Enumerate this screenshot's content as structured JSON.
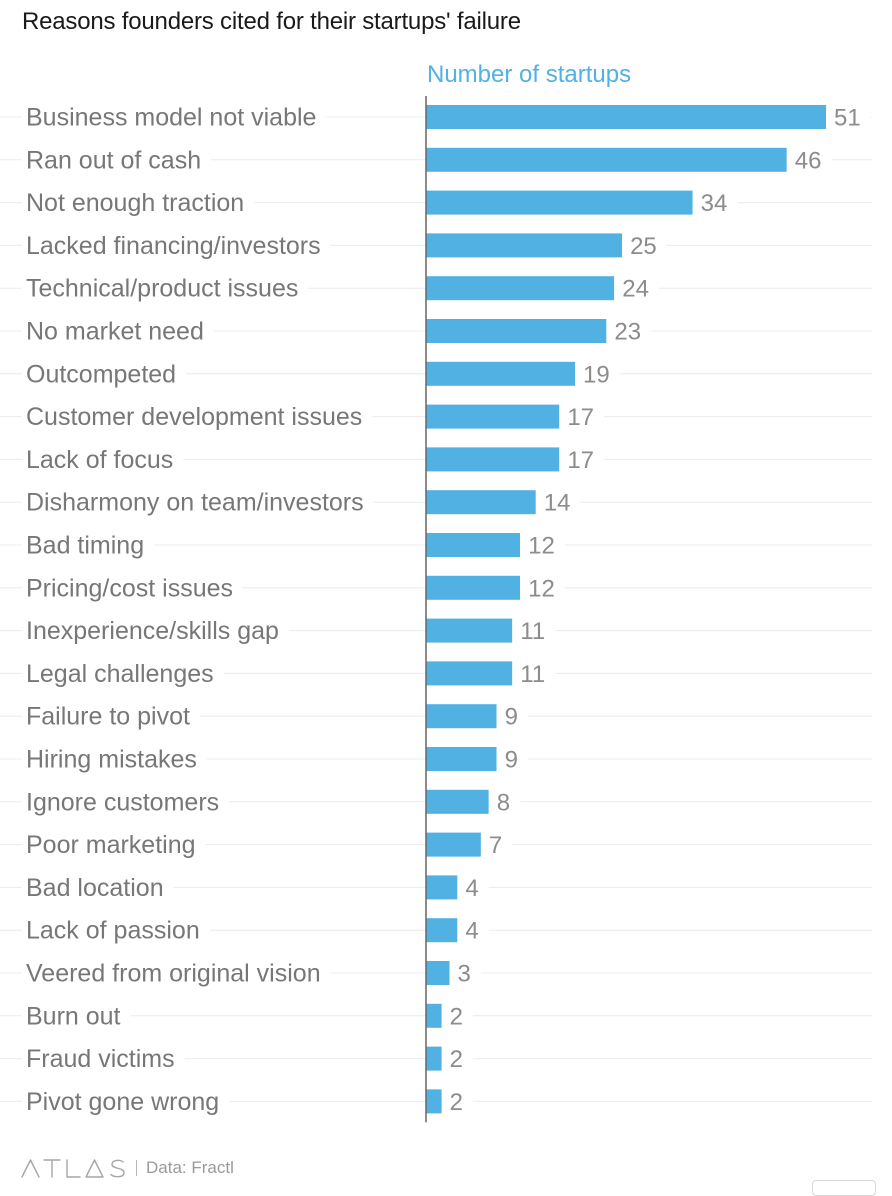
{
  "chart_data": {
    "type": "bar",
    "orientation": "horizontal",
    "title": "Reasons founders cited for their startups' failure",
    "series": [
      {
        "name": "Number of startups",
        "color": "#52b1e3",
        "values": [
          51,
          46,
          34,
          25,
          24,
          23,
          19,
          17,
          17,
          14,
          12,
          12,
          11,
          11,
          9,
          9,
          8,
          7,
          4,
          4,
          3,
          2,
          2,
          2
        ]
      }
    ],
    "categories": [
      "Business model not viable",
      "Ran out of cash",
      "Not enough traction",
      "Lacked financing/investors",
      "Technical/product issues",
      "No market need",
      "Outcompeted",
      "Customer development issues",
      "Lack of focus",
      "Disharmony on team/investors",
      "Bad timing",
      "Pricing/cost issues",
      "Inexperience/skills gap",
      "Legal challenges",
      "Failure to pivot",
      "Hiring mistakes",
      "Ignore customers",
      "Poor marketing",
      "Bad location",
      "Lack of passion",
      "Veered from original vision",
      "Burn out",
      "Fraud victims",
      "Pivot gone wrong"
    ],
    "xlim": [
      0,
      51
    ],
    "value_labels": true,
    "grid": "row guide lines",
    "legend": "top, above bars"
  },
  "colors": {
    "bar": "#52b1e3",
    "series_label": "#52b1e3",
    "category_text": "#777777",
    "value_text": "#8c8c8c",
    "axis": "#666666",
    "guide": "#ececec",
    "title": "#1a1a1a"
  },
  "footer": {
    "brand_icon": "atlas-logo",
    "brand": "ATLAS",
    "source": "Data: Fractl"
  }
}
